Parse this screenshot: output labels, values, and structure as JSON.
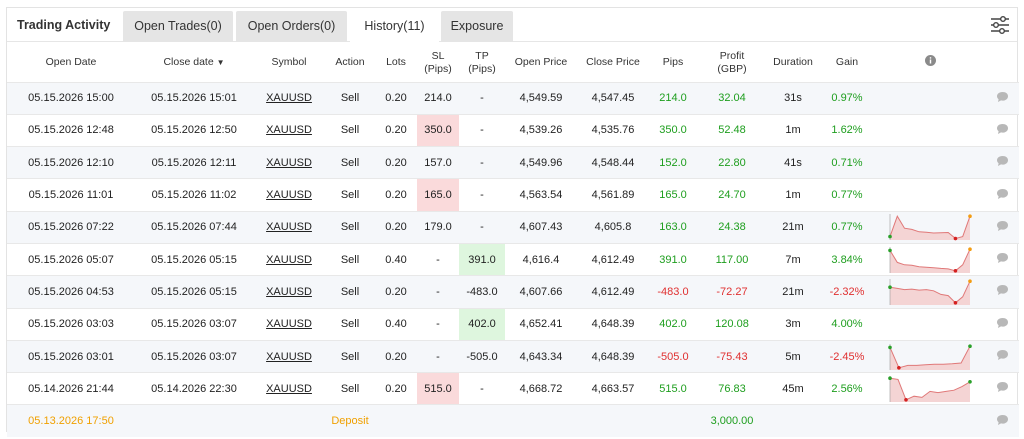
{
  "title": "Trading Activity",
  "tabs": [
    {
      "label": "Open Trades",
      "count": "(0)"
    },
    {
      "label": "Open Orders",
      "count": "(0)"
    },
    {
      "label": "History",
      "count": "(11)"
    },
    {
      "label": "Exposure",
      "count": ""
    }
  ],
  "active_tab": "History",
  "icons": {
    "settings": "sliders-icon",
    "info": "info-icon",
    "comment": "comment-icon"
  },
  "colors": {
    "positive": "#1e9e1e",
    "negative": "#e03030",
    "deposit": "#f0a000",
    "sl_cell": "#fadadb",
    "tp_cell": "#def6de"
  },
  "columns": {
    "open_date": "Open Date",
    "close_date": "Close date",
    "sort_indicator": "▼",
    "symbol": "Symbol",
    "action": "Action",
    "lots": "Lots",
    "sl": "SL",
    "sl_unit": "(Pips)",
    "tp": "TP",
    "tp_unit": "(Pips)",
    "open_price": "Open Price",
    "close_price": "Close Price",
    "pips": "Pips",
    "profit": "Profit",
    "profit_unit": "(GBP)",
    "duration": "Duration",
    "gain": "Gain"
  },
  "rows": [
    {
      "open_date": "05.15.2026 15:00",
      "close_date": "05.15.2026 15:01",
      "symbol": "XAUUSD",
      "action": "Sell",
      "lots": "0.20",
      "sl": "214.0",
      "tp": "-",
      "open_price": "4,549.59",
      "close_price": "4,547.45",
      "pips": "214.0",
      "profit": "32.04",
      "duration": "31s",
      "gain": "0.97%",
      "sign": "pos",
      "spark": null
    },
    {
      "open_date": "05.15.2026 12:48",
      "close_date": "05.15.2026 12:50",
      "symbol": "XAUUSD",
      "action": "Sell",
      "lots": "0.20",
      "sl": "350.0",
      "tp": "-",
      "open_price": "4,539.26",
      "close_price": "4,535.76",
      "pips": "350.0",
      "profit": "52.48",
      "duration": "1m",
      "gain": "1.62%",
      "sign": "pos",
      "spark": null
    },
    {
      "open_date": "05.15.2026 12:10",
      "close_date": "05.15.2026 12:11",
      "symbol": "XAUUSD",
      "action": "Sell",
      "lots": "0.20",
      "sl": "157.0",
      "tp": "-",
      "open_price": "4,549.96",
      "close_price": "4,548.44",
      "pips": "152.0",
      "profit": "22.80",
      "duration": "41s",
      "gain": "0.71%",
      "sign": "pos",
      "spark": null
    },
    {
      "open_date": "05.15.2026 11:01",
      "close_date": "05.15.2026 11:02",
      "symbol": "XAUUSD",
      "action": "Sell",
      "lots": "0.20",
      "sl": "165.0",
      "tp": "-",
      "open_price": "4,563.54",
      "close_price": "4,561.89",
      "pips": "165.0",
      "profit": "24.70",
      "duration": "1m",
      "gain": "0.77%",
      "sign": "pos",
      "spark": null
    },
    {
      "open_date": "05.15.2026 07:22",
      "close_date": "05.15.2026 07:44",
      "symbol": "XAUUSD",
      "action": "Sell",
      "lots": "0.20",
      "sl": "179.0",
      "tp": "-",
      "open_price": "4,607.43",
      "close_price": "4,605.8",
      "pips": "163.0",
      "profit": "24.38",
      "duration": "21m",
      "gain": "0.77%",
      "sign": "pos",
      "spark": [
        0.9,
        0.05,
        0.55,
        0.6,
        0.7,
        0.72,
        0.75,
        0.74,
        0.73,
        0.98,
        0.9,
        0.05
      ]
    },
    {
      "open_date": "05.15.2026 05:07",
      "close_date": "05.15.2026 05:15",
      "symbol": "XAUUSD",
      "action": "Sell",
      "lots": "0.40",
      "sl": "-",
      "tp": "391.0",
      "open_price": "4,616.4",
      "close_price": "4,612.49",
      "pips": "391.0",
      "profit": "117.00",
      "duration": "7m",
      "gain": "3.84%",
      "sign": "pos",
      "spark": [
        0.1,
        0.6,
        0.7,
        0.72,
        0.78,
        0.8,
        0.82,
        0.85,
        0.87,
        0.95,
        0.7,
        0.05
      ]
    },
    {
      "open_date": "05.15.2026 04:53",
      "close_date": "05.15.2026 05:15",
      "symbol": "XAUUSD",
      "action": "Sell",
      "lots": "0.20",
      "sl": "-",
      "tp": "-483.0",
      "open_price": "4,607.66",
      "close_price": "4,612.49",
      "pips": "-483.0",
      "profit": "-72.27",
      "duration": "21m",
      "gain": "-2.32%",
      "sign": "neg",
      "spark": [
        0.3,
        0.35,
        0.4,
        0.38,
        0.42,
        0.4,
        0.45,
        0.6,
        0.65,
        0.95,
        0.7,
        0.05
      ]
    },
    {
      "open_date": "05.15.2026 03:03",
      "close_date": "05.15.2026 03:07",
      "symbol": "XAUUSD",
      "action": "Sell",
      "lots": "0.40",
      "sl": "-",
      "tp": "402.0",
      "open_price": "4,652.41",
      "close_price": "4,648.39",
      "pips": "402.0",
      "profit": "120.08",
      "duration": "3m",
      "gain": "4.00%",
      "sign": "pos",
      "spark": null
    },
    {
      "open_date": "05.15.2026 03:01",
      "close_date": "05.15.2026 03:07",
      "symbol": "XAUUSD",
      "action": "Sell",
      "lots": "0.20",
      "sl": "-",
      "tp": "-505.0",
      "open_price": "4,643.34",
      "close_price": "4,648.39",
      "pips": "-505.0",
      "profit": "-75.43",
      "duration": "5m",
      "gain": "-2.45%",
      "sign": "neg",
      "spark": [
        0.1,
        0.95,
        0.85,
        0.85,
        0.82,
        0.8,
        0.8,
        0.78,
        0.75,
        0.05
      ]
    },
    {
      "open_date": "05.14.2026 21:44",
      "close_date": "05.14.2026 22:30",
      "symbol": "XAUUSD",
      "action": "Sell",
      "lots": "0.20",
      "sl": "515.0",
      "tp": "-",
      "open_price": "4,668.72",
      "close_price": "4,663.57",
      "pips": "515.0",
      "profit": "76.83",
      "duration": "45m",
      "gain": "2.56%",
      "sign": "pos",
      "spark": [
        0.05,
        0.1,
        0.95,
        0.8,
        0.85,
        0.6,
        0.65,
        0.6,
        0.55,
        0.4,
        0.2
      ]
    }
  ],
  "deposit": {
    "date": "05.13.2026 17:50",
    "label": "Deposit",
    "amount": "3,000.00"
  }
}
